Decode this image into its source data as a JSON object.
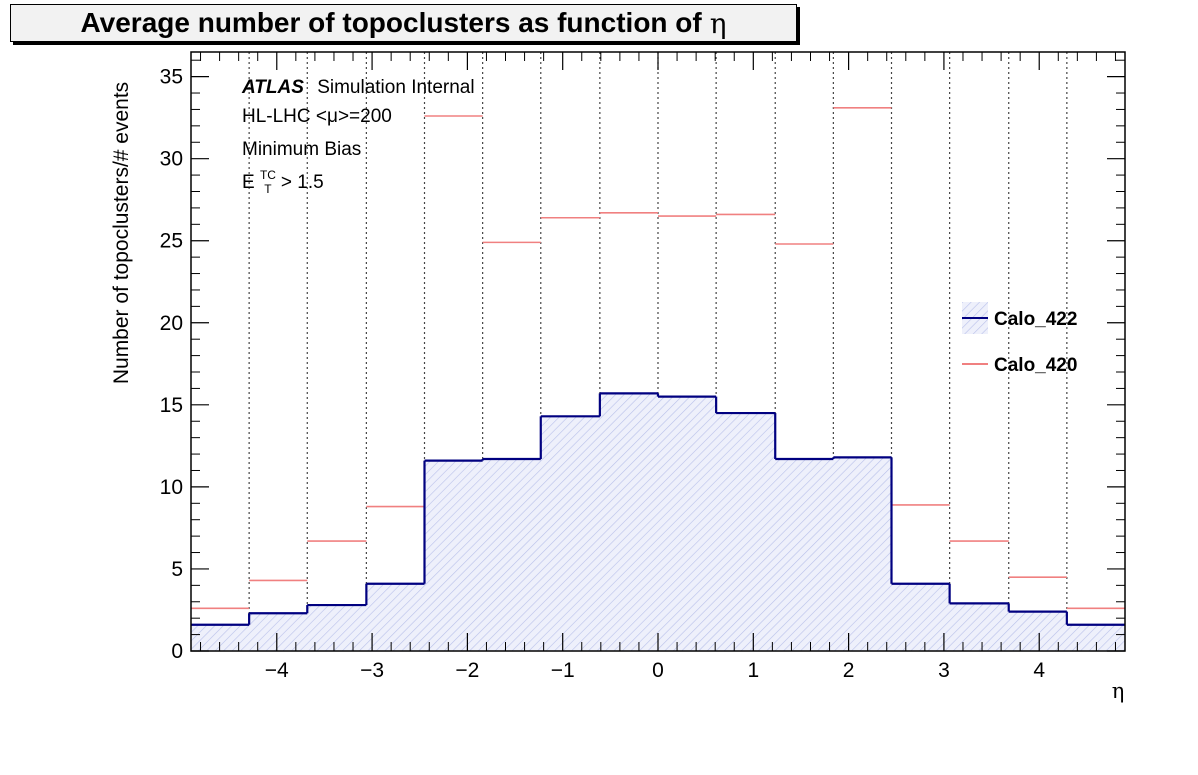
{
  "chart_data": {
    "type": "histogram",
    "title": "Average number of topoclusters as function of",
    "title_symbol": "η",
    "xlabel": "η",
    "ylabel": "Number of topoclusters/# events",
    "xlim": [
      -4.9,
      4.9
    ],
    "ylim": [
      0,
      36.5
    ],
    "xticks": [
      -4,
      -3,
      -2,
      -1,
      0,
      1,
      2,
      3,
      4
    ],
    "xtick_labels": [
      "−4",
      "−3",
      "−2",
      "−1",
      "0",
      "1",
      "2",
      "3",
      "4"
    ],
    "yticks": [
      0,
      5,
      10,
      15,
      20,
      25,
      30,
      35
    ],
    "ytick_labels": [
      "0",
      "5",
      "10",
      "15",
      "20",
      "25",
      "30",
      "35"
    ],
    "bin_edges": [
      -4.9,
      -4.29,
      -3.68,
      -3.06,
      -2.45,
      -1.84,
      -1.23,
      -0.61,
      0.0,
      0.61,
      1.23,
      1.84,
      2.45,
      3.06,
      3.68,
      4.29,
      4.9
    ],
    "vertical_grid_lines": [
      -4.29,
      -3.68,
      -3.06,
      -2.45,
      -1.84,
      -1.23,
      -0.61,
      0.0,
      0.61,
      1.23,
      1.84,
      2.45,
      3.06,
      3.68,
      4.29
    ],
    "grid": "vertical dotted lines at bin edges",
    "legend_position": "right",
    "series": [
      {
        "name": "Calo_422",
        "style": "filled-hatched-step",
        "color": "#000080",
        "fill_color": "#d6dbf5",
        "values": [
          1.6,
          2.3,
          2.8,
          4.1,
          11.6,
          11.7,
          14.3,
          15.7,
          15.5,
          14.5,
          11.7,
          11.8,
          4.1,
          2.9,
          2.4,
          1.6
        ]
      },
      {
        "name": "Calo_420",
        "style": "horizontal-bin-markers",
        "color": "#f08080",
        "values": [
          2.6,
          4.3,
          6.7,
          8.8,
          32.6,
          24.9,
          26.4,
          26.7,
          26.5,
          26.6,
          24.8,
          33.1,
          8.9,
          6.7,
          4.5,
          2.6
        ]
      }
    ],
    "annotations": {
      "atlas": "ATLAS",
      "atlas_suffix": "Simulation Internal",
      "line2": "HL-LHC <μ>=200",
      "line3": "Minimum Bias",
      "line4_e": "E",
      "line4_sup": "TC",
      "line4_sub": "T",
      "line4_rest": " > 1.5"
    }
  }
}
